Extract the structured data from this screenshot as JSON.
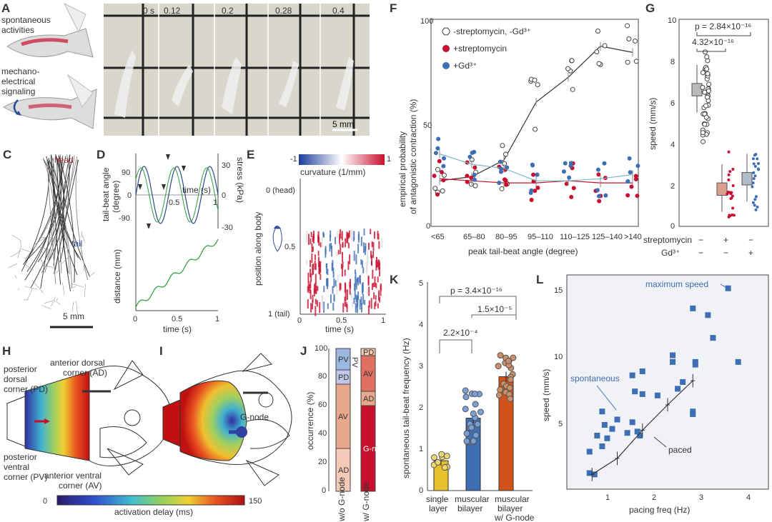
{
  "colors": {
    "red": "#c8102e",
    "blue": "#3e6eb4",
    "green": "#2a9d3a",
    "gray": "#999999",
    "teal": "#7ab8c8",
    "yellow": "#e8c12a",
    "orange": "#d2531a",
    "tan": "#c9906a"
  },
  "panels": {
    "A": "A",
    "B": "B",
    "C": "C",
    "D": "D",
    "E": "E",
    "F": "F",
    "G": "G",
    "H": "H",
    "I": "I",
    "J": "J",
    "K": "K",
    "L": "L"
  },
  "panelA": {
    "label1": "spontaneous",
    "label2": "activities",
    "label3": "mechano-",
    "label4": "electrical",
    "label5": "signaling"
  },
  "panelB": {
    "times": [
      "0 s",
      "0.12",
      "0.2",
      "0.28",
      "0.4"
    ],
    "scale": "5 mm"
  },
  "panelC": {
    "head": "head",
    "tail": "tail",
    "scale": "5 mm"
  },
  "panelD": {
    "ylabel_top": "tail-beat angle",
    "ylabel_top2": "(degree)",
    "ylabel_right": "stress (kPa)",
    "xlabel_inner": "time (s)",
    "ylabel_bottom": "distance (mm)",
    "xlabel": "time (s)",
    "yticks_left": [
      "90",
      "0",
      "-90"
    ],
    "yticks_right": [
      "30",
      "0",
      "-30"
    ],
    "xticks": [
      "0",
      "0.5",
      "1"
    ],
    "xticks_inner": [
      "0.5",
      "1"
    ]
  },
  "panelE": {
    "cbar_min": "-1",
    "cbar_max": "1",
    "cbar_label": "curvature (1/mm)",
    "ylabel": "position along body",
    "yticks": [
      "0 (head)",
      "0.5",
      "1 (tail)"
    ],
    "xticks": [
      "0",
      "0.5",
      "1"
    ],
    "xlabel": "time (s)"
  },
  "panelH": {
    "ad": "anterior dorsal",
    "ad2": "corner (AD)",
    "pd": "posterior",
    "pd2": "dorsal",
    "pd3": "corner (PD)",
    "pv": "posterior",
    "pv2": "ventral",
    "pv3": "corner (PV)",
    "av": "anterior ventral",
    "av2": "corner (AV)"
  },
  "panelI": {
    "gnode": "G-node"
  },
  "colorbar": {
    "min": "0",
    "max": "150",
    "label": "activation delay (ms)"
  },
  "chart_data": [
    {
      "id": "F",
      "type": "scatter",
      "xlabel": "peak tail-beat angle (degree)",
      "ylabel": "empirical probability",
      "ylabel2": "of antagonistic contraction (%)",
      "categories": [
        "<65",
        "65–80",
        "80–95",
        "95–110",
        "110–125",
        "125–140",
        ">140"
      ],
      "ylim": [
        0,
        100
      ],
      "yticks": [
        "0",
        "50",
        "100"
      ],
      "legend": [
        "-streptomycin, -Gd³⁺",
        "+streptomycin",
        "+Gd³⁺"
      ],
      "series": [
        {
          "name": "-streptomycin, -Gd³⁺",
          "values": [
            22,
            24,
            32,
            60,
            72,
            87,
            84
          ]
        },
        {
          "name": "+streptomycin",
          "values": [
            23,
            22,
            21,
            21,
            22,
            21,
            21
          ]
        },
        {
          "name": "+Gd³⁺",
          "values": [
            35,
            30,
            28,
            22,
            22,
            23,
            25
          ]
        }
      ]
    },
    {
      "id": "G",
      "type": "box",
      "ylabel": "speed (mm/s)",
      "ylim": [
        0,
        10
      ],
      "yticks": [
        "0",
        "2",
        "4",
        "6",
        "8",
        "10"
      ],
      "p1": "p = 2.84×10⁻¹⁶",
      "p2": "4.32×10⁻¹⁶",
      "rows": [
        {
          "name": "streptomycin",
          "vals": [
            "−",
            "+",
            "−"
          ]
        },
        {
          "name": "Gd³⁺",
          "vals": [
            "−",
            "−",
            "+"
          ]
        }
      ],
      "medians": [
        6.6,
        1.8,
        2.3
      ]
    },
    {
      "id": "J",
      "type": "stacked-bar",
      "ylabel": "occurrence (%)",
      "yticks": [
        "0",
        "20",
        "40",
        "60",
        "80",
        "100"
      ],
      "categories": [
        "w/o G-node",
        "w/ G-node"
      ],
      "segments": [
        {
          "name": "AD",
          "values": [
            30,
            10
          ]
        },
        {
          "name": "AV",
          "values": [
            45,
            10
          ]
        },
        {
          "name": "PD",
          "values": [
            10,
            0
          ]
        },
        {
          "name": "PV",
          "values": [
            15,
            0
          ]
        },
        {
          "name": "G-node",
          "values": [
            0,
            60
          ]
        },
        {
          "name": "AV",
          "values": [
            0,
            15
          ]
        },
        {
          "name": "PD",
          "values": [
            0,
            5
          ]
        }
      ],
      "labels_w/o": [
        "AD",
        "AV",
        "PD",
        "PV"
      ],
      "labels_w": [
        "G-node",
        "AD",
        "AV",
        "PD"
      ]
    },
    {
      "id": "K",
      "type": "bar",
      "ylabel": "spontaneous tail-beat frequency (Hz)",
      "ylim": [
        0,
        5
      ],
      "yticks": [
        "0",
        "1",
        "2",
        "3",
        "4",
        "5"
      ],
      "categories": [
        "single layer",
        "muscular bilayer",
        "muscular bilayer w/ G-node"
      ],
      "cat_lines": [
        [
          "single",
          "layer"
        ],
        [
          "muscular",
          "bilayer"
        ],
        [
          "muscular",
          "bilayer",
          "w/ G-node"
        ]
      ],
      "values": [
        0.72,
        1.75,
        2.75
      ],
      "p1": "p = 3.4×10⁻¹⁶",
      "p2": "1.5×10⁻⁵",
      "p3": "2.2×10⁻⁴"
    },
    {
      "id": "L",
      "type": "scatter",
      "xlabel": "pacing freq (Hz)",
      "ylabel": "speed (mm/s)",
      "xlim": [
        0.5,
        4.5
      ],
      "ylim": [
        0,
        16
      ],
      "xticks": [
        "1",
        "2",
        "3",
        "4"
      ],
      "yticks": [
        "5",
        "10",
        "15"
      ],
      "annot_max": "maximum speed",
      "annot_spont": "spontaneous",
      "annot_paced": "paced",
      "points": [
        [
          0.95,
          1.2
        ],
        [
          1.05,
          1.1
        ],
        [
          0.95,
          2.8
        ],
        [
          1.2,
          3.2
        ],
        [
          1.3,
          3.8
        ],
        [
          1.1,
          4.0
        ],
        [
          1.25,
          4.8
        ],
        [
          1.4,
          4.5
        ],
        [
          1.5,
          5.2
        ],
        [
          1.2,
          5.8
        ],
        [
          1.7,
          4.2
        ],
        [
          1.8,
          5.0
        ],
        [
          1.9,
          4.3
        ],
        [
          1.95,
          4.0
        ],
        [
          1.85,
          7.3
        ],
        [
          2.0,
          7.1
        ],
        [
          2.0,
          8.8
        ],
        [
          1.8,
          8.5
        ],
        [
          2.3,
          7.0
        ],
        [
          2.6,
          10.0
        ],
        [
          2.6,
          9.5
        ],
        [
          2.8,
          8.0
        ],
        [
          2.7,
          7.5
        ],
        [
          3.05,
          9.5
        ],
        [
          3.05,
          9.3
        ],
        [
          3.0,
          13.5
        ],
        [
          3.0,
          5.8
        ],
        [
          3.0,
          5.6
        ],
        [
          3.3,
          13.0
        ],
        [
          3.4,
          11.3
        ],
        [
          3.7,
          15.0
        ],
        [
          3.9,
          9.5
        ]
      ],
      "paced": [
        [
          1.0,
          1.1
        ],
        [
          1.5,
          2.3
        ],
        [
          2.0,
          4.4
        ],
        [
          2.5,
          6.3
        ],
        [
          3.0,
          8.1
        ]
      ]
    }
  ]
}
